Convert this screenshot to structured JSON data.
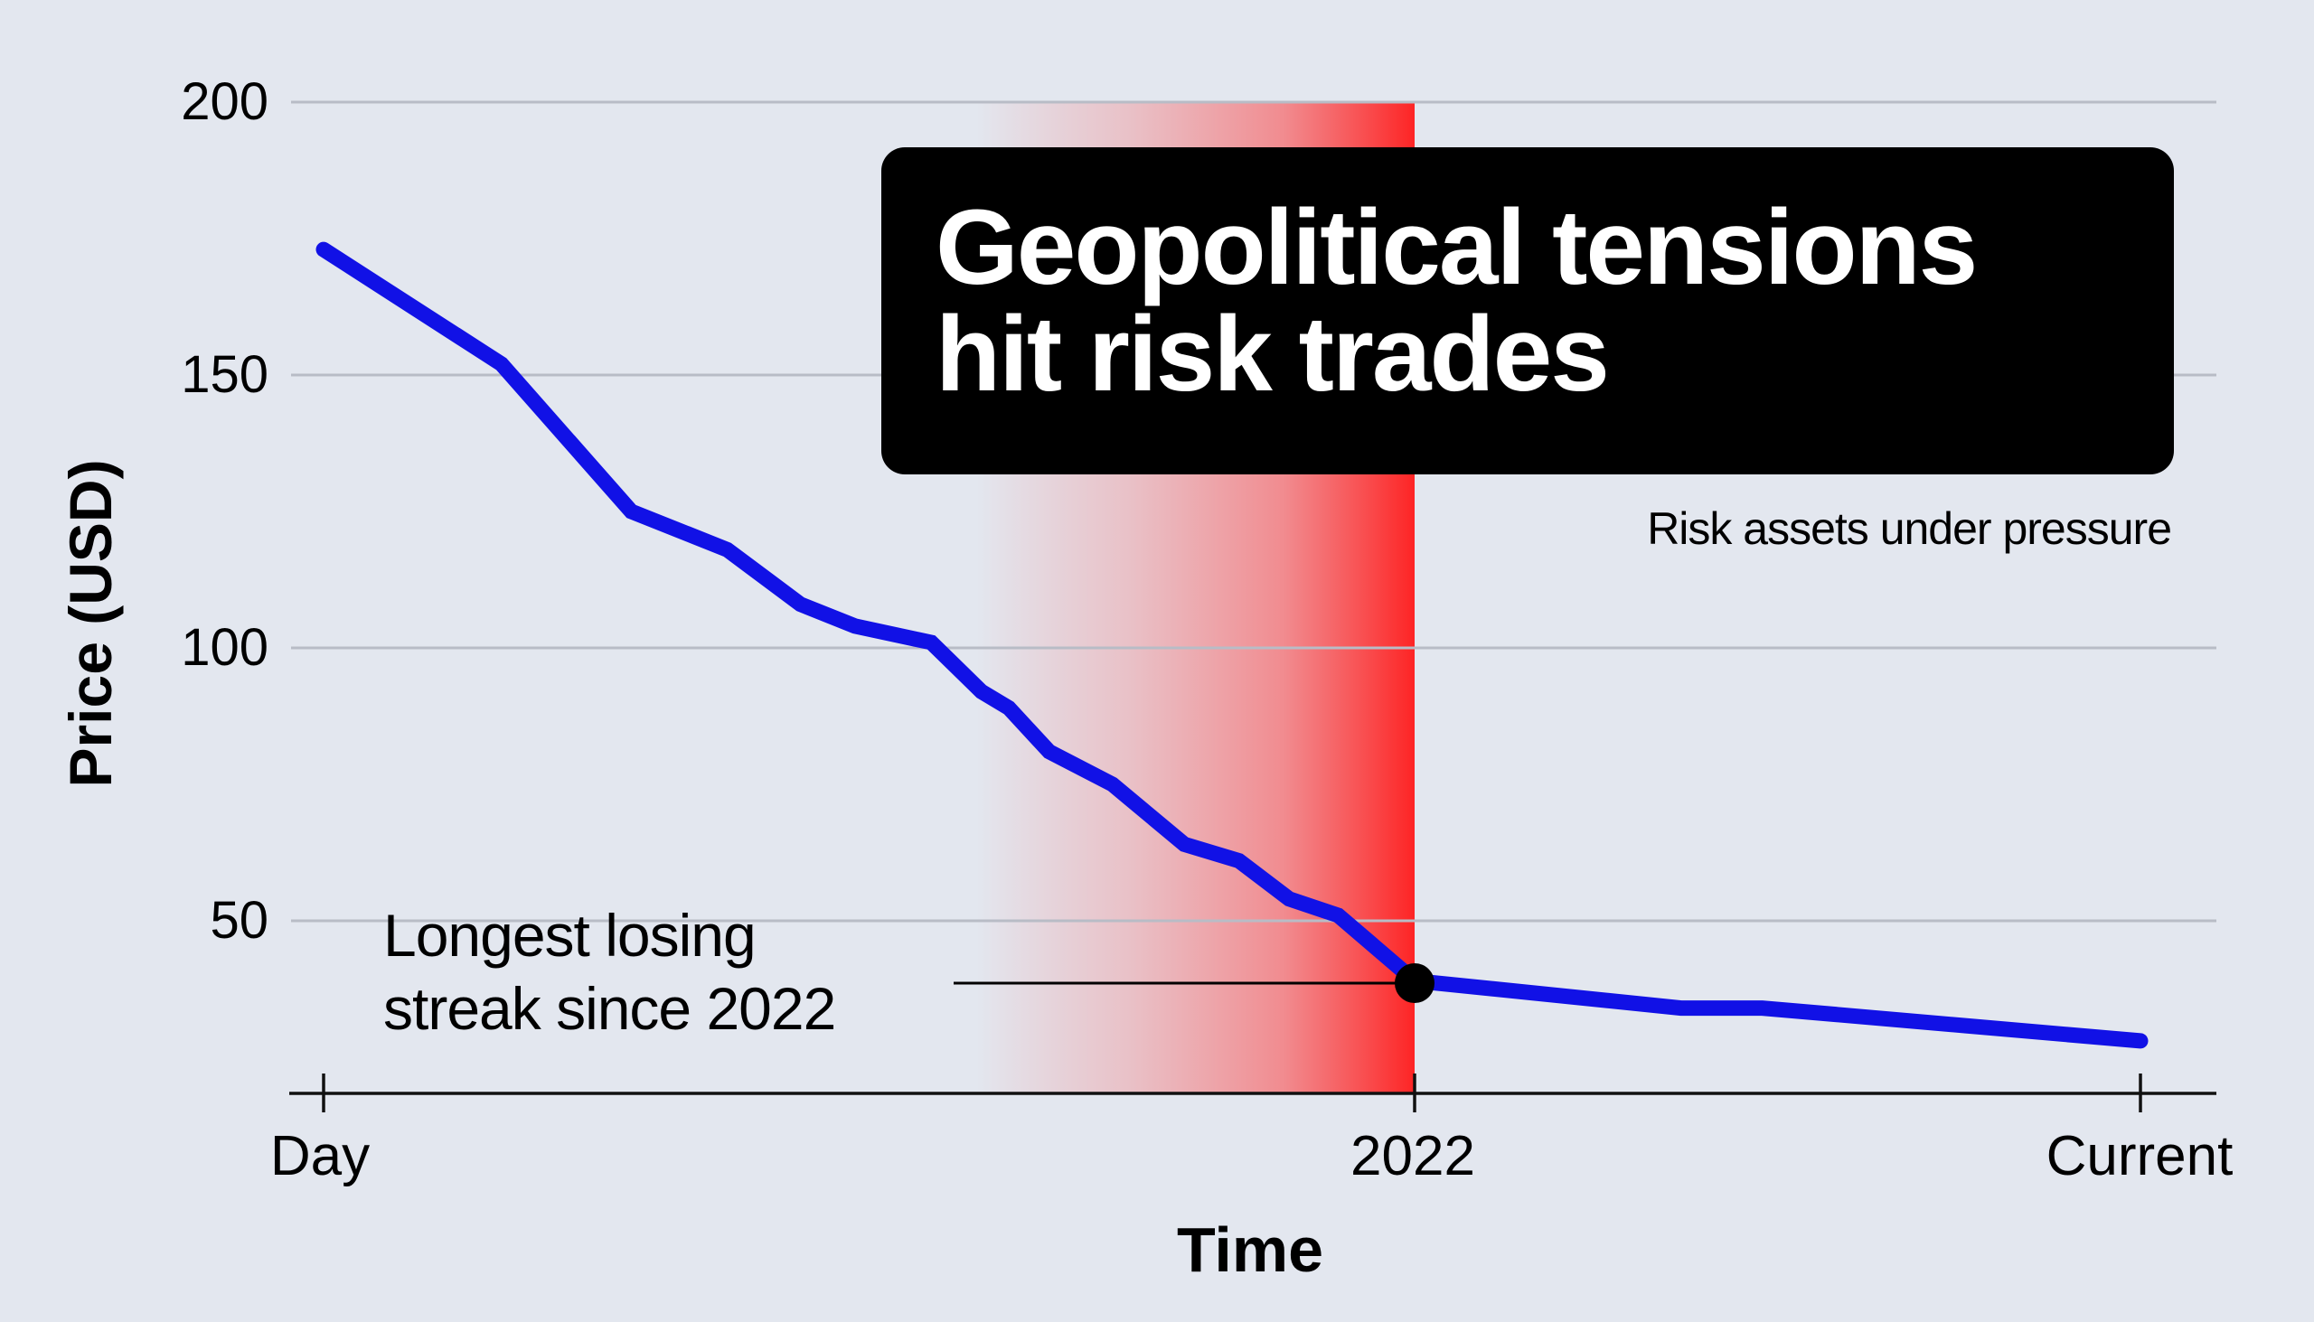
{
  "chart_data": {
    "type": "line",
    "title": "Geopolitical tensions hit risk trades",
    "subtitle": "Risk assets under pressure",
    "xlabel": "Time",
    "ylabel": "Price (USD)",
    "ylim": [
      18,
      200
    ],
    "yticks": [
      50,
      100,
      150,
      200
    ],
    "xtick_labels": [
      "Day",
      "2022",
      "Current"
    ],
    "grid": true,
    "legend": null,
    "series": [
      {
        "name": "Price",
        "color": "#1111e6",
        "x": [
          0,
          0.163,
          0.282,
          0.37,
          0.437,
          0.487,
          0.557,
          0.603,
          0.628,
          0.665,
          0.723,
          0.789,
          0.839,
          0.885,
          0.93,
          1.0,
          1.367,
          1.479,
          2.0
        ],
        "values": [
          173,
          152,
          125,
          118,
          108,
          104,
          101,
          92,
          89,
          81,
          75,
          64,
          61,
          54,
          51,
          39,
          34,
          34,
          28
        ]
      }
    ],
    "x_scale_note": "x in units where Day=0, 2022=1, Current=2",
    "highlight_band": {
      "from": 0.39,
      "to": 1.0,
      "color": "#ff2a2a",
      "gradient": "fades left to transparent"
    },
    "annotations": [
      {
        "text": "Longest losing streak since 2022",
        "x": 1.0,
        "y": 39,
        "marker": "black dot"
      }
    ]
  },
  "headline": {
    "line1": "Geopolitical tensions",
    "line2": "hit risk trades"
  },
  "subtitle": "Risk assets under pressure",
  "annotation": {
    "line1": "Longest losing",
    "line2": "streak since 2022"
  },
  "axes": {
    "y_label": "Price (USD)",
    "x_label": "Time",
    "y_ticks": [
      "200",
      "150",
      "100",
      "50"
    ],
    "x_ticks": [
      "Day",
      "2022",
      "Current"
    ]
  },
  "colors": {
    "background": "#e3e7ef",
    "line": "#1111e6",
    "highlight": "#ff2a2a",
    "gridline": "#b8bcc6",
    "headline_bg": "#000000",
    "headline_text": "#ffffff"
  }
}
